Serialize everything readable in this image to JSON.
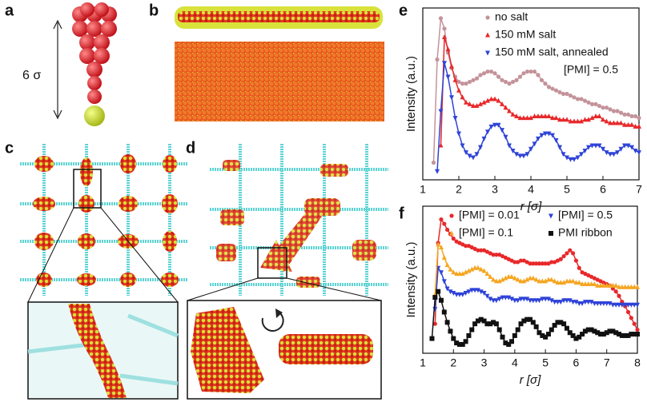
{
  "figure": {
    "panels": [
      "a",
      "b",
      "c",
      "d",
      "e",
      "f"
    ],
    "scale_label": "6 σ"
  },
  "chart_data": [
    {
      "type": "line",
      "xlabel": "r [σ]",
      "ylabel": "Intensity (a.u.)",
      "annotation": "[PMI] = 0.5",
      "x": [
        1.3,
        1.4,
        1.5,
        1.6,
        1.7,
        1.8,
        1.9,
        2.0,
        2.1,
        2.2,
        2.3,
        2.4,
        2.5,
        2.6,
        2.7,
        2.8,
        2.9,
        3.0,
        3.1,
        3.2,
        3.3,
        3.4,
        3.5,
        3.6,
        3.7,
        3.8,
        3.9,
        4.0,
        4.1,
        4.2,
        4.3,
        4.4,
        4.5,
        4.6,
        4.7,
        4.8,
        4.9,
        5.0,
        5.1,
        5.2,
        5.3,
        5.4,
        5.5,
        5.6,
        5.7,
        5.8,
        5.9,
        6.0,
        6.1,
        6.2,
        6.3,
        6.4,
        6.5,
        6.6,
        6.7,
        6.8,
        6.9,
        7.0
      ],
      "series": [
        {
          "name": "no salt",
          "color": "#c4939a",
          "marker": "circle",
          "values": [
            10,
            70,
            94,
            88,
            74,
            65,
            60,
            57,
            56,
            56,
            57,
            58,
            59,
            61,
            62,
            63,
            63,
            62,
            60,
            58,
            57,
            56,
            57,
            58,
            60,
            62,
            63,
            63,
            63,
            61,
            58,
            56,
            54,
            53,
            52,
            51,
            50,
            50,
            49,
            48,
            47,
            47,
            46,
            45,
            44,
            44,
            43,
            42,
            42,
            41,
            40,
            40,
            39,
            38,
            38,
            37,
            37,
            36
          ]
        },
        {
          "name": "150 mM salt",
          "color": "#e8282a",
          "marker": "triangle-up",
          "values": [
            null,
            null,
            20,
            83,
            76,
            66,
            58,
            52,
            48,
            45,
            44,
            43,
            43,
            44,
            45,
            46,
            47,
            47,
            46,
            44,
            42,
            40,
            38,
            37,
            36,
            36,
            36,
            36,
            37,
            37,
            37,
            37,
            37,
            36,
            36,
            35,
            35,
            35,
            34,
            34,
            34,
            34,
            35,
            35,
            36,
            37,
            37,
            35,
            34,
            33,
            33,
            33,
            33,
            32,
            32,
            32,
            31,
            31
          ]
        },
        {
          "name": "150 mM salt, annealed",
          "color": "#2f43d8",
          "marker": "triangle-down",
          "values": [
            null,
            5,
            40,
            68,
            60,
            48,
            36,
            27,
            20,
            16,
            14,
            13,
            15,
            19,
            24,
            28,
            31,
            32,
            32,
            29,
            25,
            20,
            17,
            15,
            14,
            14,
            15,
            18,
            21,
            24,
            26,
            27,
            27,
            26,
            23,
            19,
            15,
            13,
            12,
            12,
            13,
            15,
            17,
            19,
            20,
            20,
            20,
            18,
            16,
            15,
            15,
            16,
            18,
            20,
            20,
            19,
            17,
            16
          ]
        }
      ],
      "xlim": [
        1,
        7
      ],
      "xticks": [
        1,
        2,
        3,
        4,
        5,
        6,
        7
      ],
      "ylim": [
        0,
        100
      ],
      "legend": "upper right",
      "legend_columns": 1
    },
    {
      "type": "line",
      "xlabel": "r [σ]",
      "ylabel": "Intensity (a.u.)",
      "x": [
        1.3,
        1.4,
        1.5,
        1.6,
        1.7,
        1.8,
        1.9,
        2.0,
        2.1,
        2.2,
        2.3,
        2.4,
        2.5,
        2.6,
        2.7,
        2.8,
        2.9,
        3.0,
        3.1,
        3.2,
        3.3,
        3.4,
        3.5,
        3.6,
        3.7,
        3.8,
        3.9,
        4.0,
        4.1,
        4.2,
        4.3,
        4.4,
        4.5,
        4.6,
        4.7,
        4.8,
        4.9,
        5.0,
        5.1,
        5.2,
        5.3,
        5.4,
        5.5,
        5.6,
        5.7,
        5.8,
        5.9,
        6.0,
        6.1,
        6.2,
        6.3,
        6.4,
        6.5,
        6.6,
        6.7,
        6.8,
        6.9,
        7.0,
        7.1,
        7.2,
        7.3,
        7.4,
        7.5,
        7.6,
        7.7,
        7.8,
        7.9,
        8.0
      ],
      "series": [
        {
          "name": "[PMI] = 0.01",
          "color": "#e8282a",
          "marker": "circle",
          "values": [
            null,
            20,
            75,
            91,
            88,
            84,
            81,
            78,
            76,
            75,
            74,
            73,
            73,
            72,
            71,
            70,
            70,
            70,
            69,
            68,
            67,
            67,
            67,
            66,
            65,
            64,
            63,
            62,
            62,
            63,
            63,
            62,
            61,
            61,
            61,
            61,
            61,
            61,
            61,
            62,
            62,
            63,
            64,
            66,
            68,
            70,
            68,
            63,
            58,
            55,
            54,
            53,
            52,
            51,
            50,
            49,
            48,
            47,
            46,
            44,
            42,
            39,
            35,
            32,
            28,
            24,
            20,
            16
          ]
        },
        {
          "name": "[PMI] = 0.5",
          "color": "#2f43d8",
          "marker": "triangle-down",
          "values": [
            null,
            30,
            58,
            55,
            49,
            44,
            42,
            41,
            40,
            40,
            40,
            41,
            42,
            43,
            43,
            43,
            42,
            41,
            39,
            37,
            36,
            36,
            37,
            38,
            38,
            38,
            37,
            36,
            36,
            37,
            37,
            37,
            36,
            36,
            36,
            36,
            37,
            37,
            37,
            36,
            35,
            35,
            35,
            36,
            36,
            36,
            35,
            35,
            34,
            34,
            35,
            35,
            35,
            34,
            34,
            34,
            34,
            34,
            34,
            33,
            33,
            33,
            33,
            33,
            33,
            33,
            33,
            33
          ]
        },
        {
          "name": "[PMI] = 0.1",
          "color": "#f5a623",
          "marker": "triangle-up",
          "values": [
            null,
            40,
            74,
            72,
            65,
            60,
            57,
            55,
            54,
            54,
            54,
            55,
            56,
            57,
            58,
            58,
            57,
            56,
            54,
            52,
            50,
            49,
            49,
            50,
            51,
            52,
            52,
            51,
            50,
            49,
            49,
            50,
            51,
            51,
            50,
            49,
            49,
            49,
            50,
            50,
            49,
            48,
            48,
            48,
            49,
            49,
            49,
            48,
            48,
            47,
            47,
            47,
            47,
            47,
            46,
            46,
            46,
            46,
            46,
            46,
            46,
            45,
            45,
            45,
            45,
            45,
            45,
            45
          ]
        },
        {
          "name": "PMI ribbon",
          "color": "#111111",
          "marker": "square",
          "values": [
            10,
            38,
            42,
            36,
            28,
            21,
            15,
            10,
            7,
            6,
            6,
            8,
            12,
            16,
            20,
            22,
            23,
            22,
            20,
            20,
            21,
            20,
            16,
            11,
            7,
            6,
            8,
            12,
            16,
            20,
            22,
            23,
            23,
            21,
            18,
            14,
            12,
            11,
            13,
            16,
            19,
            21,
            21,
            20,
            17,
            14,
            12,
            10,
            11,
            13,
            15,
            16,
            16,
            15,
            14,
            13,
            13,
            14,
            15,
            15,
            14,
            13,
            12,
            12,
            12,
            13,
            13,
            13
          ]
        }
      ],
      "xlim": [
        1,
        8
      ],
      "xticks": [
        1,
        2,
        3,
        4,
        5,
        6,
        7,
        8
      ],
      "ylim": [
        0,
        100
      ],
      "legend": "upper right",
      "legend_columns": 2
    }
  ]
}
